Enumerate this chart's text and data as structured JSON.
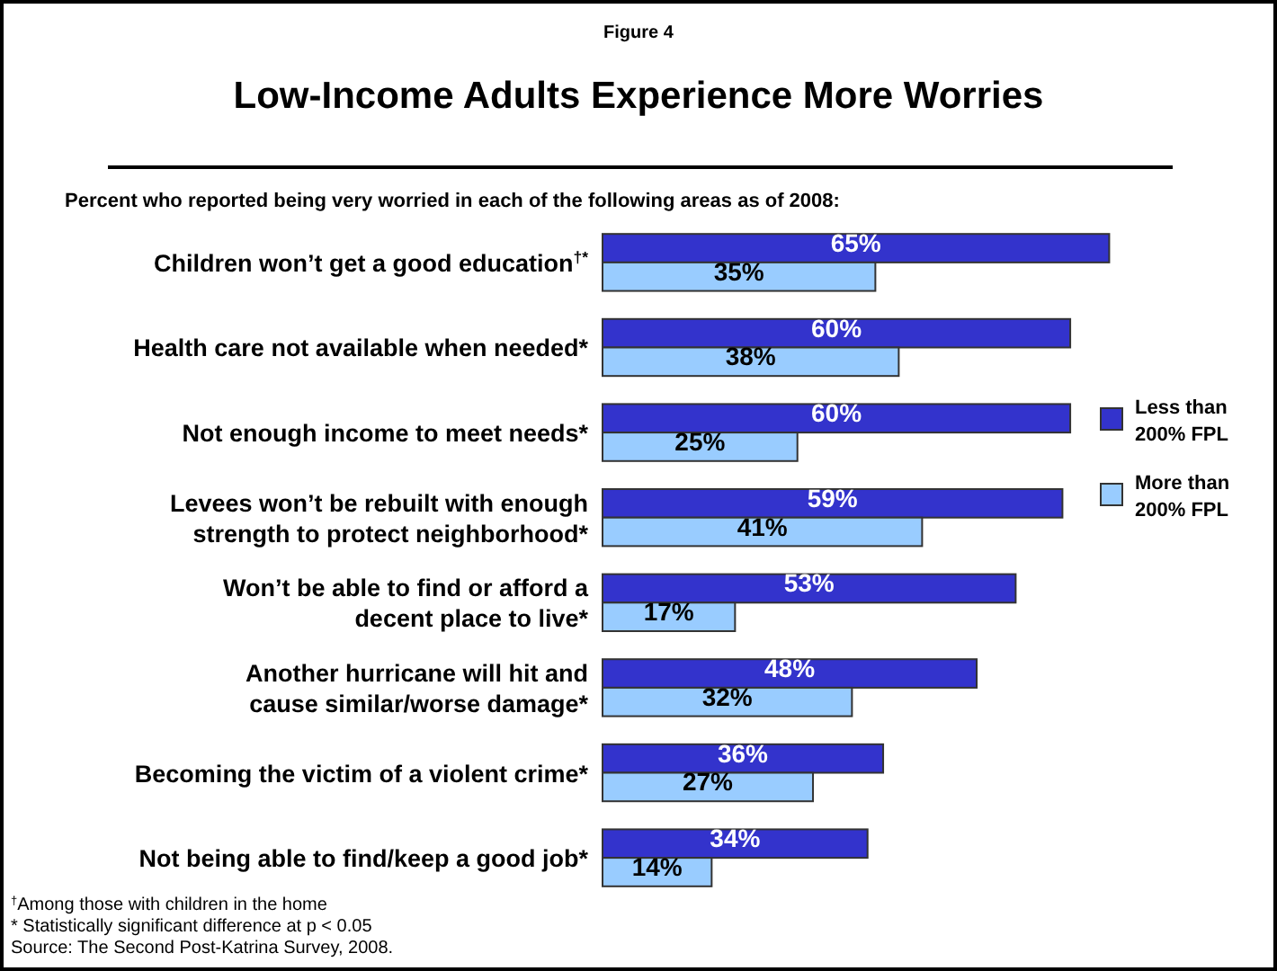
{
  "chart_data": {
    "type": "bar",
    "orientation": "horizontal",
    "title": "Low-Income Adults Experience More Worries",
    "subtitle": "Percent who reported being very worried in each of the following areas as of 2008:",
    "categories": [
      "Children won’t get a good education$^{†*}$",
      "Health care not available when needed*",
      "Not enough income to meet needs*",
      "Levees won’t be rebuilt with enough\nstrength to protect neighborhood*",
      "Won’t be able to find or afford a\ndecent place to live*",
      "Another hurricane will hit and\ncause similar/worse damage*",
      "Becoming the victim of a violent crime*",
      "Not being able to find/keep a good job*"
    ],
    "series": [
      {
        "name": "Less than 200% FPL",
        "color": "#3333cc",
        "values": [
          65,
          60,
          60,
          59,
          53,
          48,
          36,
          34
        ],
        "value_labels": [
          "65%",
          "60%",
          "60%",
          "59%",
          "53%",
          "48%",
          "36%",
          "34%"
        ]
      },
      {
        "name": "More than 200% FPL",
        "color": "#99ccff",
        "values": [
          35,
          38,
          25,
          41,
          17,
          32,
          27,
          14
        ],
        "value_labels": [
          "35%",
          "38%",
          "25%",
          "41%",
          "17%",
          "32%",
          "27%",
          "14%"
        ]
      }
    ],
    "legend": "right",
    "annotations": [
      "Figure 4",
      "$^{†}$Among those with children in the home",
      "* Statistically significant difference at p < 0.05",
      "Source: The Second Post-Katrina Survey, 2008."
    ]
  }
}
